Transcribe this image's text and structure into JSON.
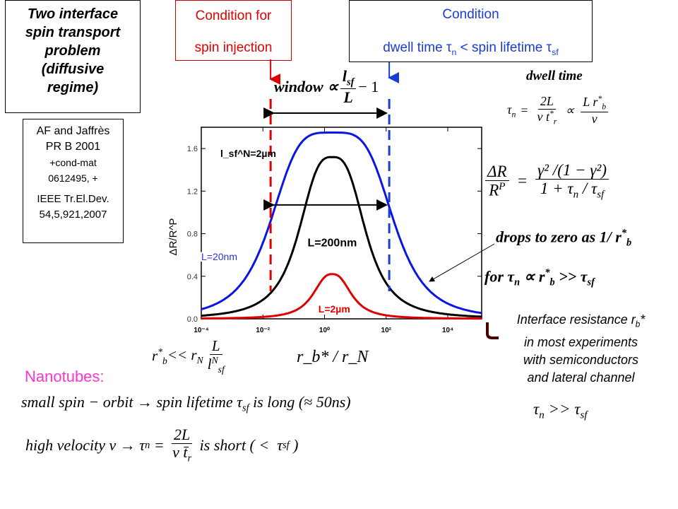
{
  "title_box": {
    "lines": [
      "Two interface",
      "spin transport",
      "problem",
      "(diffusive",
      "regime)"
    ]
  },
  "reference_box": {
    "lines": [
      "AF and Jaffrès",
      "PR B 2001",
      "+cond-mat",
      "0612495, +",
      "IEEE Tr.El.Dev.",
      "54,5,921,2007"
    ]
  },
  "condition_injection_box": {
    "line1": "Condition for",
    "line2": "spin injection",
    "color": "#e00000"
  },
  "condition_dwell_box": {
    "line1": "Condition",
    "line2": "dwell time τ",
    "sub_n": "n",
    "line2b": " < spin lifetime τ",
    "sub_sf": "sf",
    "color": "#1a3bd8"
  },
  "window_eq": {
    "lhs": "window ∝",
    "num": "l",
    "num_sub": "sf",
    "den": "L",
    "tail": "− 1"
  },
  "dwell_time": {
    "label": "dwell  time",
    "eq_lhs": "τ",
    "eq_lhs_sub": "n",
    "eq": "=",
    "num1": "2L",
    "den1": "v t",
    "den1_sub": "r",
    "prop": "∝",
    "num2": "L r",
    "num2_sub": "b",
    "den2": "v"
  },
  "dr_eq": {
    "num_lhs": "ΔR",
    "den_lhs": "R",
    "den_lhs_sup": "P",
    "eq": "=",
    "num_rhs": "γ² /(1 − γ²)",
    "den_rhs": "1 + τ",
    "den_rhs_sub1": "n",
    "den_rhs_mid": " / τ",
    "den_rhs_sub2": "sf"
  },
  "drops_text": {
    "line1": "drops to zero as 1/ r",
    "line1_sub": "b",
    "line2": "for  τ",
    "line2_sub": "n",
    "line2b": " ∝ r",
    "line2b_sub": "b",
    "line2c": " >> τ",
    "line2c_sub": "sf"
  },
  "interface_note": {
    "lines": [
      "Interface resistance r",
      "in most experiments",
      "with semiconductors",
      "and lateral channel"
    ],
    "sub": "b",
    "star": "*"
  },
  "tau_relation": {
    "a": "τ",
    "a_sub": "n",
    "op": " >> τ",
    "b_sub": "sf"
  },
  "below_axis_left": {
    "lhs": "r",
    "lhs_sub": "b",
    "op": " << r",
    "op_sub": "N",
    "num": "L",
    "den": "l",
    "den_sup": "N",
    "den_sub": "sf"
  },
  "nanotubes": {
    "heading": "Nanotubes:",
    "heading_color": "#ff33cc",
    "line1": "small spin − orbit → spin lifetime τ",
    "line1_sub": "sf",
    "line1_tail": " is long (≈ 50ns)",
    "line2": "high velocity v → τ",
    "line2_sub": "n",
    "line2_eq": " = ",
    "line2_num": "2L",
    "line2_den": "v t̄",
    "line2_den_sub": "r",
    "line2_tail": " is short ( <  τ",
    "line2_tail_sub": "sf",
    "line2_end": " )"
  },
  "chart_data": {
    "type": "line",
    "xlabel": "r_b* / r_N",
    "ylabel": "ΔR/R^P",
    "x_scale": "log",
    "xlim_log10": [
      -4,
      5.1
    ],
    "ylim": [
      0,
      1.8
    ],
    "x_ticks": [
      "10⁻⁴",
      "10⁻²",
      "10⁰",
      "10²",
      "10⁴"
    ],
    "x_tick_log10": [
      -4,
      -2,
      0,
      2,
      4
    ],
    "y_ticks": [
      "0.0",
      "0.4",
      "0.8",
      "1.2",
      "1.6"
    ],
    "y_tick_values": [
      0,
      0.4,
      0.8,
      1.2,
      1.6
    ],
    "annotation": "l_sf^N=2µm",
    "series": [
      {
        "name": "L=20nm",
        "color": "#0a14e6",
        "peak": 1.75,
        "center_log10": 0.25,
        "halfwidth_decades": 2.05,
        "shape_power": 4
      },
      {
        "name": "L=200nm",
        "color": "#000000",
        "peak": 1.52,
        "center_log10": 0.25,
        "halfwidth_decades": 1.15,
        "shape_power": 3
      },
      {
        "name": "L=2µm",
        "color": "#e00000",
        "peak": 0.42,
        "center_log10": 0.25,
        "halfwidth_decades": 0.68,
        "shape_power": 2.6
      }
    ],
    "window_limits_log10": {
      "injection": -1.75,
      "dwell": 2.1
    },
    "window_arrow_y": 1.07
  }
}
